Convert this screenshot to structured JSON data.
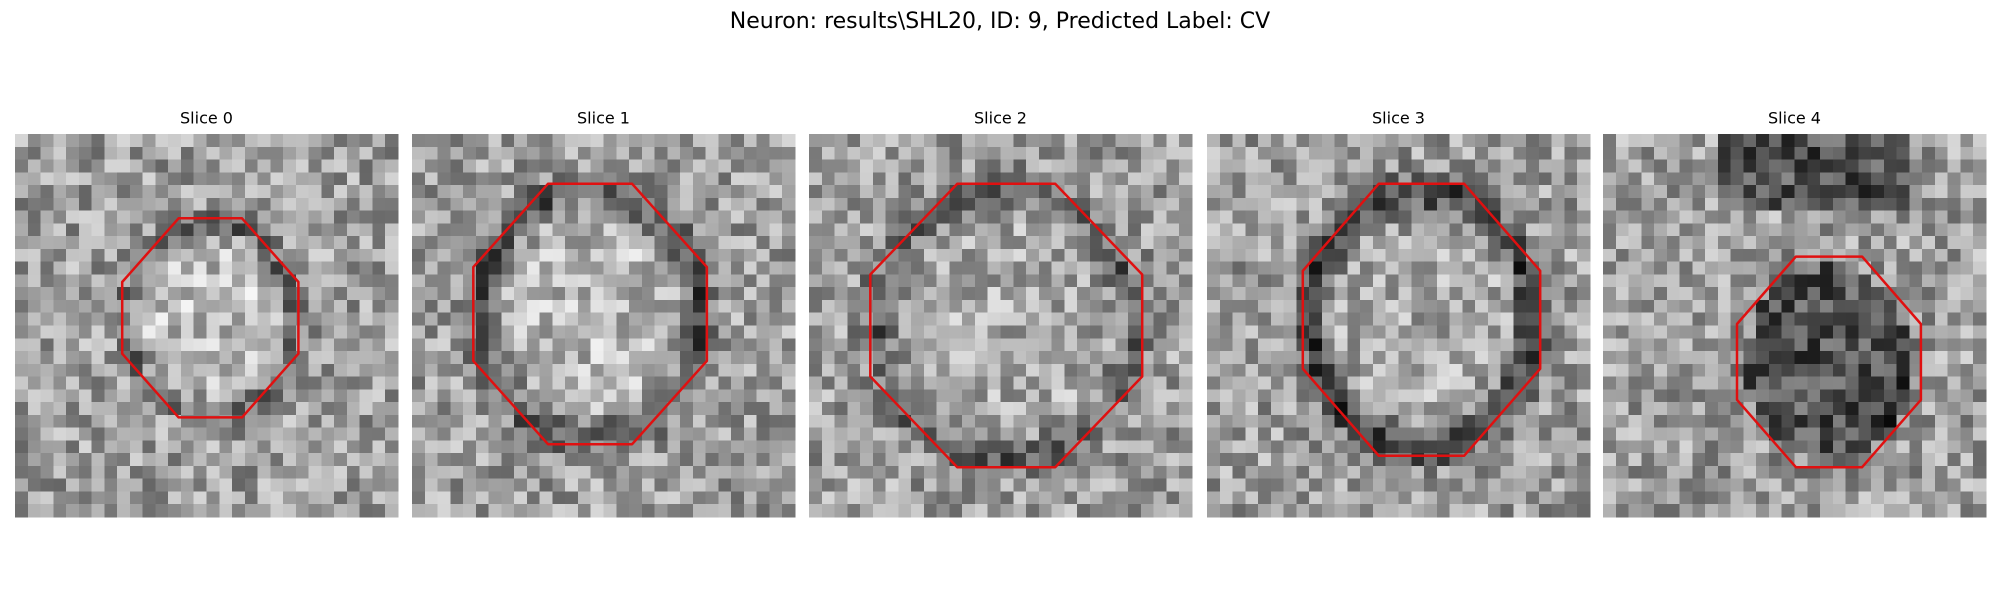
{
  "title": "Neuron: results\\SHL20, ID: 9, Predicted Label: CV",
  "panels": [
    {
      "title": "Slice 0"
    },
    {
      "title": "Slice 1"
    },
    {
      "title": "Slice 2"
    },
    {
      "title": "Slice 3"
    },
    {
      "title": "Slice 4"
    }
  ]
}
